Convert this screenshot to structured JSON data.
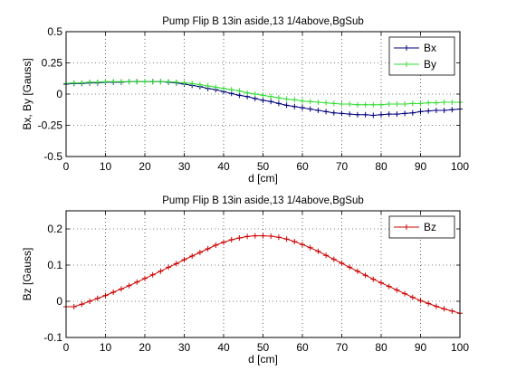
{
  "chart_data": [
    {
      "type": "line",
      "title": "Pump Flip B 13in aside,13 1/4above,BgSub",
      "xlabel": "d [cm]",
      "ylabel": "Bx, By [Gauss]",
      "xlim": [
        0,
        100
      ],
      "ylim": [
        -0.5,
        0.5
      ],
      "xticks": [
        "0",
        "10",
        "20",
        "30",
        "40",
        "50",
        "60",
        "70",
        "80",
        "90",
        "100"
      ],
      "yticks": [
        "-0.5",
        "-0.25",
        "0",
        "0.25",
        "0.5"
      ],
      "xtick_values": [
        0,
        10,
        20,
        30,
        40,
        50,
        60,
        70,
        80,
        90,
        100
      ],
      "ytick_values": [
        -0.5,
        -0.25,
        0,
        0.25,
        0.5
      ],
      "grid": true,
      "legend_position": "top-right",
      "series": [
        {
          "name": "Bx",
          "color": "#00007f",
          "marker": "plus",
          "x": [
            0,
            2,
            4,
            6,
            8,
            10,
            12,
            14,
            16,
            18,
            20,
            22,
            24,
            26,
            28,
            30,
            32,
            34,
            36,
            38,
            40,
            42,
            44,
            46,
            48,
            50,
            52,
            54,
            56,
            58,
            60,
            62,
            64,
            66,
            68,
            70,
            72,
            74,
            76,
            78,
            80,
            82,
            84,
            86,
            88,
            90,
            92,
            94,
            96,
            98,
            100
          ],
          "y": [
            0.08,
            0.085,
            0.085,
            0.09,
            0.09,
            0.095,
            0.095,
            0.095,
            0.1,
            0.1,
            0.1,
            0.1,
            0.1,
            0.095,
            0.09,
            0.08,
            0.07,
            0.06,
            0.045,
            0.035,
            0.02,
            0.005,
            -0.01,
            -0.02,
            -0.035,
            -0.05,
            -0.06,
            -0.075,
            -0.09,
            -0.1,
            -0.11,
            -0.12,
            -0.13,
            -0.14,
            -0.15,
            -0.155,
            -0.16,
            -0.165,
            -0.165,
            -0.17,
            -0.165,
            -0.16,
            -0.16,
            -0.155,
            -0.15,
            -0.14,
            -0.135,
            -0.13,
            -0.13,
            -0.125,
            -0.12
          ]
        },
        {
          "name": "By",
          "color": "#33dd33",
          "marker": "plus",
          "x": [
            0,
            2,
            4,
            6,
            8,
            10,
            12,
            14,
            16,
            18,
            20,
            22,
            24,
            26,
            28,
            30,
            32,
            34,
            36,
            38,
            40,
            42,
            44,
            46,
            48,
            50,
            52,
            54,
            56,
            58,
            60,
            62,
            64,
            66,
            68,
            70,
            72,
            74,
            76,
            78,
            80,
            82,
            84,
            86,
            88,
            90,
            92,
            94,
            96,
            98,
            100
          ],
          "y": [
            0.085,
            0.09,
            0.09,
            0.095,
            0.095,
            0.1,
            0.1,
            0.1,
            0.1,
            0.1,
            0.1,
            0.1,
            0.1,
            0.1,
            0.095,
            0.09,
            0.085,
            0.075,
            0.065,
            0.055,
            0.045,
            0.035,
            0.025,
            0.01,
            0.0,
            -0.01,
            -0.02,
            -0.03,
            -0.04,
            -0.045,
            -0.055,
            -0.06,
            -0.065,
            -0.07,
            -0.075,
            -0.08,
            -0.08,
            -0.085,
            -0.085,
            -0.085,
            -0.085,
            -0.08,
            -0.08,
            -0.08,
            -0.075,
            -0.075,
            -0.07,
            -0.07,
            -0.065,
            -0.065,
            -0.065
          ]
        }
      ]
    },
    {
      "type": "line",
      "title": "Pump Flip B 13in aside,13 1/4above,BgSub",
      "xlabel": "d [cm]",
      "ylabel": "Bz [Gauss]",
      "xlim": [
        0,
        100
      ],
      "ylim": [
        -0.1,
        0.25
      ],
      "xticks": [
        "0",
        "10",
        "20",
        "30",
        "40",
        "50",
        "60",
        "70",
        "80",
        "90",
        "100"
      ],
      "yticks": [
        "-0.1",
        "0",
        "0.1",
        "0.2"
      ],
      "xtick_values": [
        0,
        10,
        20,
        30,
        40,
        50,
        60,
        70,
        80,
        90,
        100
      ],
      "ytick_values": [
        -0.1,
        0,
        0.1,
        0.2
      ],
      "grid": true,
      "legend_position": "top-right",
      "series": [
        {
          "name": "Bz",
          "color": "#cc0000",
          "marker": "plus",
          "x": [
            0,
            2,
            4,
            6,
            8,
            10,
            12,
            14,
            16,
            18,
            20,
            22,
            24,
            26,
            28,
            30,
            32,
            34,
            36,
            38,
            40,
            42,
            44,
            46,
            48,
            50,
            52,
            54,
            56,
            58,
            60,
            62,
            64,
            66,
            68,
            70,
            72,
            74,
            76,
            78,
            80,
            82,
            84,
            86,
            88,
            90,
            92,
            94,
            96,
            98,
            100
          ],
          "y": [
            -0.015,
            -0.015,
            -0.008,
            0.0,
            0.008,
            0.016,
            0.025,
            0.034,
            0.043,
            0.053,
            0.063,
            0.073,
            0.083,
            0.094,
            0.104,
            0.115,
            0.125,
            0.135,
            0.145,
            0.155,
            0.163,
            0.17,
            0.175,
            0.179,
            0.181,
            0.181,
            0.18,
            0.177,
            0.172,
            0.165,
            0.157,
            0.148,
            0.138,
            0.127,
            0.116,
            0.105,
            0.094,
            0.083,
            0.072,
            0.061,
            0.051,
            0.041,
            0.031,
            0.021,
            0.011,
            0.002,
            -0.006,
            -0.014,
            -0.021,
            -0.027,
            -0.033
          ]
        }
      ]
    }
  ]
}
